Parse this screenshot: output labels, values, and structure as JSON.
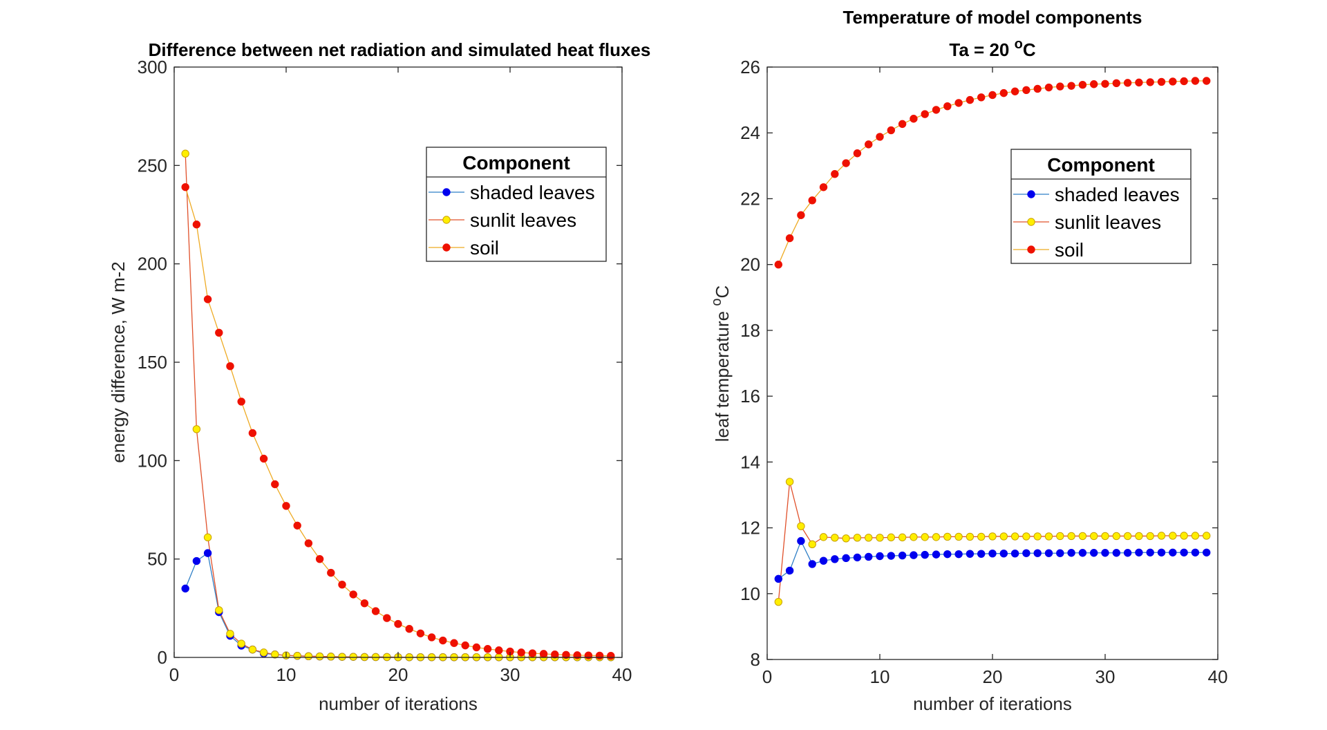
{
  "chart_data": [
    {
      "type": "line",
      "title": "Difference between net radiation and simulated heat fluxes",
      "xlabel": "number of iterations",
      "ylabel": "energy difference, W m-2",
      "xlim": [
        0,
        40
      ],
      "ylim": [
        0,
        300
      ],
      "xticks": [
        0,
        10,
        20,
        30,
        40
      ],
      "yticks": [
        0,
        50,
        100,
        150,
        200,
        250,
        300
      ],
      "legend": {
        "title": "Component",
        "position": "top-right"
      },
      "series": [
        {
          "name": "shaded leaves",
          "line_color": "#2f7fc6",
          "marker_fill": "#0000ee",
          "marker_edge": "#0000ee",
          "x": [
            1,
            2,
            3,
            4,
            5,
            6,
            7,
            8,
            9,
            10,
            11,
            12,
            13,
            14,
            15,
            16,
            17,
            18,
            19,
            20,
            21,
            22,
            23,
            24,
            25,
            26,
            27,
            28,
            29,
            30,
            31,
            32,
            33,
            34,
            35,
            36,
            37,
            38,
            39
          ],
          "y": [
            35,
            49,
            53,
            23,
            11,
            6,
            4,
            2,
            1.5,
            1,
            0.8,
            0.6,
            0.5,
            0.4,
            0.3,
            0.3,
            0.2,
            0.2,
            0.2,
            0.1,
            0.1,
            0.1,
            0.1,
            0.1,
            0.1,
            0.1,
            0.1,
            0.1,
            0.1,
            0.1,
            0.1,
            0.1,
            0.1,
            0.1,
            0.1,
            0.1,
            0.1,
            0.1,
            0.1
          ]
        },
        {
          "name": "sunlit leaves",
          "line_color": "#e0502a",
          "marker_fill": "#ffee00",
          "marker_edge": "#c8a000",
          "x": [
            1,
            2,
            3,
            4,
            5,
            6,
            7,
            8,
            9,
            10,
            11,
            12,
            13,
            14,
            15,
            16,
            17,
            18,
            19,
            20,
            21,
            22,
            23,
            24,
            25,
            26,
            27,
            28,
            29,
            30,
            31,
            32,
            33,
            34,
            35,
            36,
            37,
            38,
            39
          ],
          "y": [
            256,
            116,
            61,
            24,
            12,
            7,
            4,
            2.5,
            1.5,
            1,
            0.8,
            0.6,
            0.5,
            0.4,
            0.3,
            0.3,
            0.2,
            0.2,
            0.2,
            0.1,
            0.1,
            0.1,
            0.1,
            0.1,
            0.1,
            0.1,
            0.1,
            0.1,
            0.1,
            0.1,
            0.1,
            0.1,
            0.1,
            0.1,
            0.1,
            0.1,
            0.1,
            0.1,
            0.1
          ]
        },
        {
          "name": "soil",
          "line_color": "#eeaa22",
          "marker_fill": "#ee1100",
          "marker_edge": "#ee1100",
          "x": [
            1,
            2,
            3,
            4,
            5,
            6,
            7,
            8,
            9,
            10,
            11,
            12,
            13,
            14,
            15,
            16,
            17,
            18,
            19,
            20,
            21,
            22,
            23,
            24,
            25,
            26,
            27,
            28,
            29,
            30,
            31,
            32,
            33,
            34,
            35,
            36,
            37,
            38,
            39
          ],
          "y": [
            239,
            220,
            182,
            165,
            148,
            130,
            114,
            101,
            88,
            77,
            67,
            58,
            50,
            43,
            37,
            32,
            27.5,
            23.5,
            20,
            17,
            14.5,
            12.2,
            10.2,
            8.6,
            7.3,
            6.1,
            5.1,
            4.3,
            3.6,
            3,
            2.5,
            2.1,
            1.8,
            1.5,
            1.3,
            1.1,
            1,
            0.9,
            0.8
          ]
        }
      ]
    },
    {
      "type": "line",
      "title": "Temperature of model components",
      "subtitle_prefix": "Ta = 20 ",
      "subtitle_sup": "o",
      "subtitle_suffix": "C",
      "xlabel": "number of iterations",
      "ylabel_prefix": "leaf temperature ",
      "ylabel_sup": "o",
      "ylabel_suffix": "C",
      "xlim": [
        0,
        40
      ],
      "ylim": [
        8,
        26
      ],
      "xticks": [
        0,
        10,
        20,
        30,
        40
      ],
      "yticks": [
        8,
        10,
        12,
        14,
        16,
        18,
        20,
        22,
        24,
        26
      ],
      "legend": {
        "title": "Component",
        "position": "top-right"
      },
      "series": [
        {
          "name": "shaded leaves",
          "line_color": "#2f7fc6",
          "marker_fill": "#0000ee",
          "marker_edge": "#0000ee",
          "x": [
            1,
            2,
            3,
            4,
            5,
            6,
            7,
            8,
            9,
            10,
            11,
            12,
            13,
            14,
            15,
            16,
            17,
            18,
            19,
            20,
            21,
            22,
            23,
            24,
            25,
            26,
            27,
            28,
            29,
            30,
            31,
            32,
            33,
            34,
            35,
            36,
            37,
            38,
            39
          ],
          "y": [
            10.45,
            10.7,
            11.6,
            10.9,
            11.0,
            11.05,
            11.08,
            11.1,
            11.12,
            11.14,
            11.15,
            11.16,
            11.17,
            11.18,
            11.19,
            11.2,
            11.2,
            11.21,
            11.21,
            11.22,
            11.22,
            11.22,
            11.23,
            11.23,
            11.23,
            11.23,
            11.24,
            11.24,
            11.24,
            11.24,
            11.24,
            11.24,
            11.25,
            11.25,
            11.25,
            11.25,
            11.25,
            11.25,
            11.25
          ]
        },
        {
          "name": "sunlit leaves",
          "line_color": "#e0502a",
          "marker_fill": "#ffee00",
          "marker_edge": "#c8a000",
          "x": [
            1,
            2,
            3,
            4,
            5,
            6,
            7,
            8,
            9,
            10,
            11,
            12,
            13,
            14,
            15,
            16,
            17,
            18,
            19,
            20,
            21,
            22,
            23,
            24,
            25,
            26,
            27,
            28,
            29,
            30,
            31,
            32,
            33,
            34,
            35,
            36,
            37,
            38,
            39
          ],
          "y": [
            9.75,
            13.4,
            12.05,
            11.5,
            11.72,
            11.7,
            11.68,
            11.7,
            11.7,
            11.7,
            11.71,
            11.71,
            11.72,
            11.72,
            11.72,
            11.73,
            11.73,
            11.73,
            11.73,
            11.74,
            11.74,
            11.74,
            11.74,
            11.74,
            11.74,
            11.75,
            11.75,
            11.75,
            11.75,
            11.75,
            11.75,
            11.75,
            11.75,
            11.75,
            11.76,
            11.76,
            11.76,
            11.76,
            11.76
          ]
        },
        {
          "name": "soil",
          "line_color": "#eeaa22",
          "marker_fill": "#ee1100",
          "marker_edge": "#ee1100",
          "x": [
            1,
            2,
            3,
            4,
            5,
            6,
            7,
            8,
            9,
            10,
            11,
            12,
            13,
            14,
            15,
            16,
            17,
            18,
            19,
            20,
            21,
            22,
            23,
            24,
            25,
            26,
            27,
            28,
            29,
            30,
            31,
            32,
            33,
            34,
            35,
            36,
            37,
            38,
            39
          ],
          "y": [
            20.0,
            20.8,
            21.5,
            21.95,
            22.35,
            22.75,
            23.08,
            23.38,
            23.65,
            23.88,
            24.08,
            24.27,
            24.43,
            24.57,
            24.7,
            24.81,
            24.91,
            25.0,
            25.08,
            25.15,
            25.21,
            25.26,
            25.3,
            25.34,
            25.38,
            25.41,
            25.43,
            25.46,
            25.48,
            25.49,
            25.51,
            25.52,
            25.53,
            25.54,
            25.55,
            25.56,
            25.57,
            25.58,
            25.58
          ]
        }
      ]
    }
  ]
}
